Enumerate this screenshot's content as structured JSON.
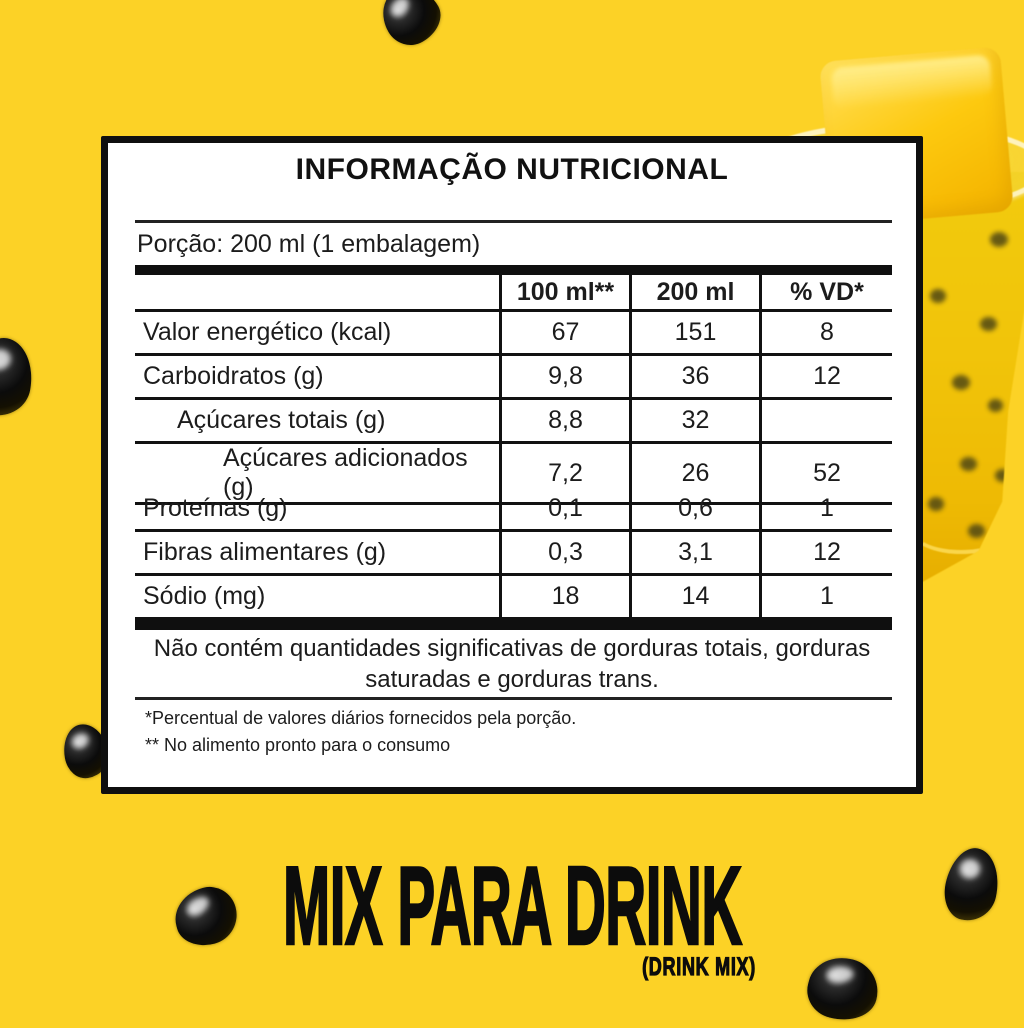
{
  "background_color": "#fcd226",
  "label_panel": {
    "title": "INFORMAÇÃO NUTRICIONAL",
    "serving": "Porção: 200 ml (1 embalagem)",
    "table": {
      "columns": [
        "",
        "100 ml**",
        "200 ml",
        "% VD*"
      ],
      "rows": [
        {
          "label": "Valor energético (kcal)",
          "indent": 0,
          "v100": "67",
          "v200": "151",
          "vd": "8"
        },
        {
          "label": "Carboidratos (g)",
          "indent": 0,
          "v100": "9,8",
          "v200": "36",
          "vd": "12"
        },
        {
          "label": "Açúcares totais (g)",
          "indent": 1,
          "v100": "8,8",
          "v200": "32",
          "vd": ""
        },
        {
          "label": "Açúcares adicionados (g)",
          "indent": 2,
          "v100": "7,2",
          "v200": "26",
          "vd": "52"
        },
        {
          "label": "Proteínas (g)",
          "indent": 0,
          "v100": "0,1",
          "v200": "0,6",
          "vd": "1"
        },
        {
          "label": "Fibras alimentares (g)",
          "indent": 0,
          "v100": "0,3",
          "v200": "3,1",
          "vd": "12"
        },
        {
          "label": "Sódio (mg)",
          "indent": 0,
          "v100": "18",
          "v200": "14",
          "vd": "1"
        }
      ]
    },
    "note": "Não contém quantidades significativas de gorduras totais, gorduras saturadas e gorduras trans.",
    "footnotes": [
      "*Percentual de valores diários fornecidos pela porção.",
      "** No alimento pronto para o consumo"
    ]
  },
  "branding": {
    "product_name": "MIX PARA DRINK",
    "product_name_sub": "(DRINK MIX)"
  },
  "decor": {
    "cup": "passion-fruit-drink-cup-with-frozen-pulp-cube",
    "seeds": "passion-fruit-seeds",
    "colors": {
      "background": "#fcd226",
      "panel_ink": "#111111",
      "drink": "#f1c40a",
      "pulp_cube": "#fdc90f",
      "seed": "#0b0b0b"
    }
  }
}
